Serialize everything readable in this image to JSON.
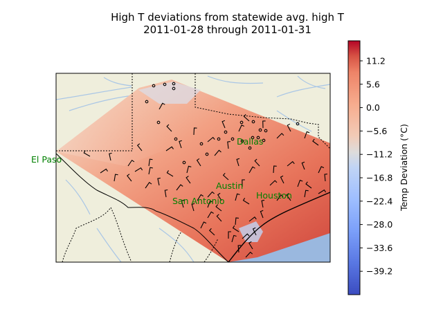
{
  "title_line1": "High T deviations from statewide avg. high T",
  "title_line2": "2011-01-28 through 2011-01-31",
  "colorbar": {
    "label": "Temp Deviation (°C)",
    "min": -44.8,
    "max": 16.0,
    "ticks": [
      "11.2",
      "5.6",
      "0.0",
      "−5.6",
      "−11.2",
      "−16.8",
      "−22.4",
      "−28.0",
      "−33.6",
      "−39.2"
    ],
    "tick_values": [
      11.2,
      5.6,
      0.0,
      -5.6,
      -11.2,
      -16.8,
      -22.4,
      -28.0,
      -33.6,
      -39.2
    ],
    "colormap": "coolwarm"
  },
  "cities": [
    {
      "name": "El Paso"
    },
    {
      "name": "Dallas"
    },
    {
      "name": "Austin"
    },
    {
      "name": "Houston"
    },
    {
      "name": "San Antonio"
    }
  ],
  "colors": {
    "land": "#efeedc",
    "water": "#9ab8df",
    "rivers": "#a9c6e6",
    "city_label": "#008000"
  }
}
